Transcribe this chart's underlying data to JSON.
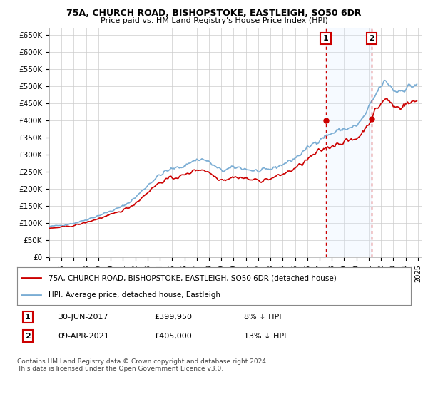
{
  "title": "75A, CHURCH ROAD, BISHOPSTOKE, EASTLEIGH, SO50 6DR",
  "subtitle": "Price paid vs. HM Land Registry's House Price Index (HPI)",
  "legend_line1": "75A, CHURCH ROAD, BISHOPSTOKE, EASTLEIGH, SO50 6DR (detached house)",
  "legend_line2": "HPI: Average price, detached house, Eastleigh",
  "annotation1_date": "30-JUN-2017",
  "annotation1_price": "£399,950",
  "annotation1_pct": "8% ↓ HPI",
  "annotation2_date": "09-APR-2021",
  "annotation2_price": "£405,000",
  "annotation2_pct": "13% ↓ HPI",
  "footnote": "Contains HM Land Registry data © Crown copyright and database right 2024.\nThis data is licensed under the Open Government Licence v3.0.",
  "price_line_color": "#cc0000",
  "hpi_line_color": "#7aadd4",
  "annotation_color": "#cc0000",
  "bg_color": "#ffffff",
  "grid_color": "#cccccc",
  "shade_color": "#ddeeff",
  "ylim": [
    0,
    670000
  ],
  "yticks": [
    0,
    50000,
    100000,
    150000,
    200000,
    250000,
    300000,
    350000,
    400000,
    450000,
    500000,
    550000,
    600000,
    650000
  ],
  "sale1_x": 2017.5,
  "sale1_y": 399950,
  "sale2_x": 2021.25,
  "sale2_y": 405000,
  "vline1_x": 2017.5,
  "vline2_x": 2021.25,
  "xmin": 1995.0,
  "xmax": 2025.3
}
